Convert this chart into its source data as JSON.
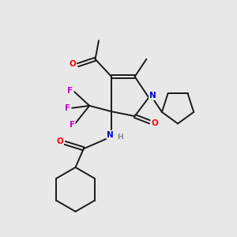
{
  "background_color": "#e8e8e8",
  "bond_color": "#1a1a1a",
  "atom_colors": {
    "O": "#ff0000",
    "N": "#0000cc",
    "F": "#cc00cc",
    "H": "#888888",
    "C": "#1a1a1a"
  },
  "figsize": [
    3.0,
    3.0
  ],
  "dpi": 100
}
